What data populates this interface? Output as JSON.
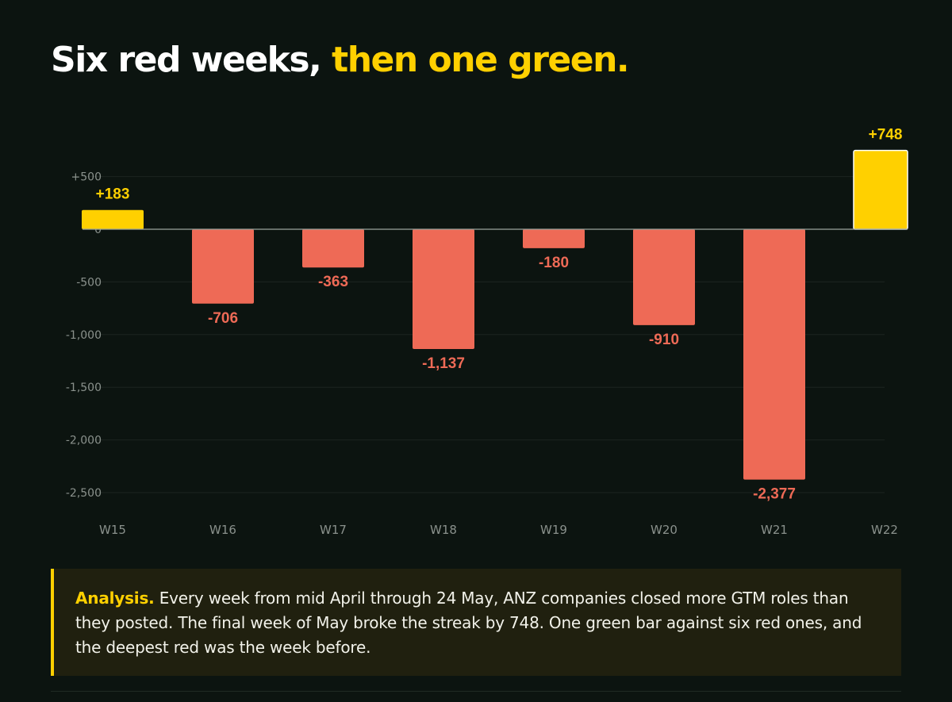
{
  "title": {
    "part1": "Six red weeks, ",
    "part2": "then one green."
  },
  "colors": {
    "background": "#0c1410",
    "positive": "#ffd000",
    "negative": "#ee6a56",
    "axis_text": "#8a918c",
    "grid": "#1c2520",
    "zero_line": "#9aa39d"
  },
  "chart_data": {
    "type": "bar",
    "categories": [
      "W15",
      "W16",
      "W17",
      "W18",
      "W19",
      "W20",
      "W21",
      "W22"
    ],
    "values": [
      183,
      -706,
      -363,
      -1137,
      -180,
      -910,
      -2377,
      748
    ],
    "value_labels": [
      "+183",
      "-706",
      "-363",
      "-1,137",
      "-180",
      "-910",
      "-2,377",
      "+748"
    ],
    "ylim": [
      -2700,
      750
    ],
    "yticks": [
      500,
      0,
      -500,
      -1000,
      -1500,
      -2000,
      -2500
    ],
    "ytick_labels": [
      "+500",
      "0",
      "-500",
      "-1,000",
      "-1,500",
      "-2,000",
      "-2,500"
    ],
    "grid": true
  },
  "analysis": {
    "lead": "Analysis.",
    "text": " Every week from mid April through 24 May, ANZ companies closed more GTM roles than they posted. The final week of May broke the streak by 748. One green bar against six red ones, and the deepest red was the week before."
  }
}
